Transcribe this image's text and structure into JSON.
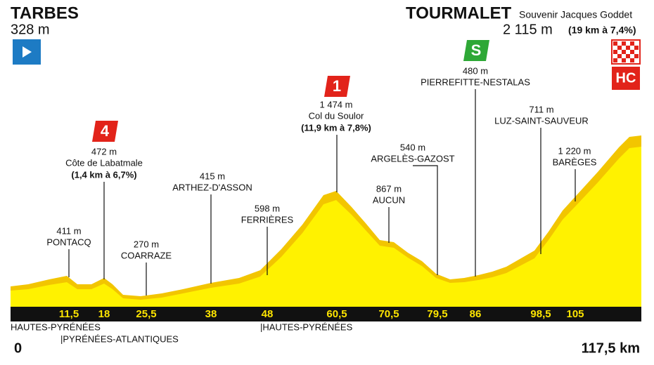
{
  "start": {
    "name": "TARBES",
    "altitude": "328 m",
    "distance": "0"
  },
  "finish": {
    "name": "TOURMALET",
    "subtitle": "Souvenir Jacques Goddet",
    "altitude": "2 115 m",
    "climb": "(19 km à 7,4%)",
    "badge": "HC",
    "distance": "117,5 km"
  },
  "waypoints": [
    {
      "km": "11,5",
      "altitude": "411 m",
      "name": "PONTACQ"
    },
    {
      "km": "18",
      "altitude": "472 m",
      "name": "Côte de Labatmale",
      "climb": "(1,4 km à 6,7%)",
      "badge": "4"
    },
    {
      "km": "25,5",
      "altitude": "270 m",
      "name": "COARRAZE"
    },
    {
      "km": "38",
      "altitude": "415 m",
      "name": "ARTHEZ-D'ASSON"
    },
    {
      "km": "48",
      "altitude": "598 m",
      "name": "FERRIÈRES"
    },
    {
      "km": "60,5",
      "altitude": "1 474 m",
      "name": "Col du Soulor",
      "climb": "(11,9 km à 7,8%)",
      "badge": "1"
    },
    {
      "km": "70,5",
      "altitude": "867 m",
      "name": "AUCUN"
    },
    {
      "km": "79,5",
      "altitude": "540 m",
      "name": "ARGELÈS-GAZOST"
    },
    {
      "km": "86",
      "altitude": "480 m",
      "name": "PIERREFITTE-NESTALAS",
      "badge": "S"
    },
    {
      "km": "98,5",
      "altitude": "711 m",
      "name": "LUZ-SAINT-SAUVEUR"
    },
    {
      "km": "105",
      "altitude": "1 220 m",
      "name": "BARÈGES"
    }
  ],
  "regions": [
    "HAUTES-PYRÉNÉES",
    "|PYRÉNÉES-ATLANTIQUES",
    "|HAUTES-PYRÉNÉES"
  ]
}
